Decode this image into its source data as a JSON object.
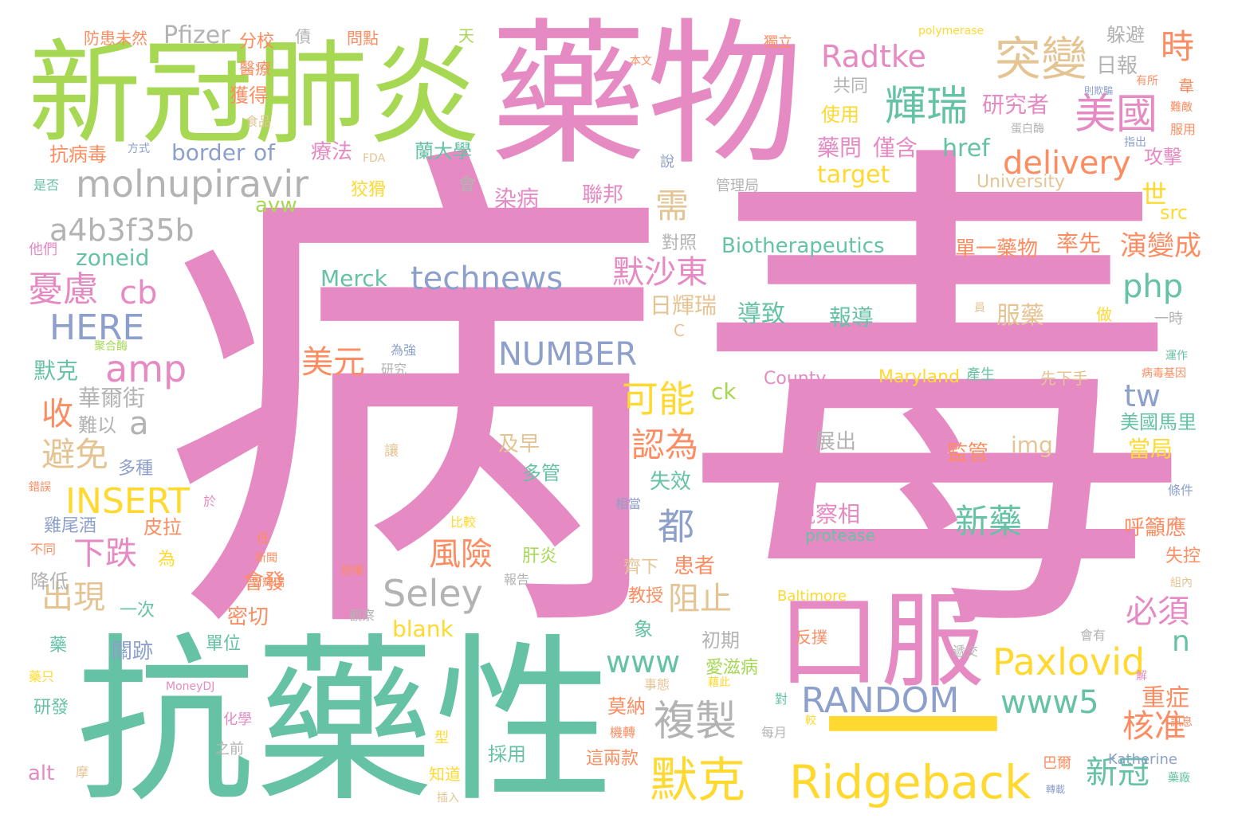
{
  "palette": {
    "pink": "#e68ac3",
    "green": "#66c2a5",
    "lime": "#a6d854",
    "yellow": "#ffd92f",
    "orange": "#fc8d62",
    "tan": "#e5c494",
    "blue": "#8da0cb",
    "gray": "#b3b3b3"
  },
  "words": [
    {
      "text": "病",
      "color": "pink"
    },
    {
      "text": "毒",
      "color": "pink"
    },
    {
      "text": "藥物",
      "color": "pink"
    },
    {
      "text": "抗藥性",
      "color": "green"
    },
    {
      "text": "新冠肺炎",
      "color": "lime"
    },
    {
      "text": "口服",
      "color": "pink"
    },
    {
      "text": "一",
      "color": "yellow"
    },
    {
      "text": "Ridgeback",
      "color": "yellow"
    },
    {
      "text": "molnupiravir",
      "color": "gray"
    },
    {
      "text": "Paxlovid",
      "color": "yellow"
    },
    {
      "text": "technews",
      "color": "blue"
    },
    {
      "text": "NUMBER",
      "color": "blue"
    },
    {
      "text": "RANDOM",
      "color": "blue"
    },
    {
      "text": "a4b3f35b",
      "color": "gray"
    },
    {
      "text": "delivery",
      "color": "orange"
    },
    {
      "text": "Radtke",
      "color": "pink"
    },
    {
      "text": "突變",
      "color": "tan"
    },
    {
      "text": "輝瑞",
      "color": "green"
    },
    {
      "text": "美國",
      "color": "pink"
    },
    {
      "text": "默克",
      "color": "yellow"
    },
    {
      "text": "複製",
      "color": "gray"
    },
    {
      "text": "Seley",
      "color": "gray"
    },
    {
      "text": "www5",
      "color": "green"
    },
    {
      "text": "www",
      "color": "green"
    },
    {
      "text": "HERE",
      "color": "blue"
    },
    {
      "text": "INSERT",
      "color": "yellow"
    },
    {
      "text": "amp",
      "color": "pink"
    },
    {
      "text": "php",
      "color": "green"
    },
    {
      "text": "可能",
      "color": "yellow"
    },
    {
      "text": "風險",
      "color": "orange"
    },
    {
      "text": "新藥",
      "color": "green"
    },
    {
      "text": "默沙東",
      "color": "pink"
    },
    {
      "text": "時",
      "color": "orange"
    },
    {
      "text": "憂慮",
      "color": "pink"
    },
    {
      "text": "cb",
      "color": "pink"
    },
    {
      "text": "避免",
      "color": "tan"
    },
    {
      "text": "出現",
      "color": "tan"
    },
    {
      "text": "美元",
      "color": "orange"
    },
    {
      "text": "認為",
      "color": "orange"
    },
    {
      "text": "都",
      "color": "blue"
    },
    {
      "text": "阻止",
      "color": "tan"
    },
    {
      "text": "必須",
      "color": "pink"
    },
    {
      "text": "核准",
      "color": "orange"
    },
    {
      "text": "新冠",
      "color": "green"
    },
    {
      "text": "下跌",
      "color": "pink"
    },
    {
      "text": "收",
      "color": "orange"
    },
    {
      "text": "需",
      "color": "tan"
    },
    {
      "text": "tw",
      "color": "blue"
    },
    {
      "text": "n",
      "color": "green"
    },
    {
      "text": "a",
      "color": "gray"
    },
    {
      "text": "Pfizer",
      "color": "gray"
    },
    {
      "text": "Merck",
      "color": "green"
    },
    {
      "text": "Biotherapeutics",
      "color": "green"
    },
    {
      "text": "target",
      "color": "yellow"
    },
    {
      "text": "href",
      "color": "green"
    },
    {
      "text": "border",
      "color": "blue"
    },
    {
      "text": "of",
      "color": "blue"
    },
    {
      "text": "zoneid",
      "color": "green"
    },
    {
      "text": "avw",
      "color": "lime"
    },
    {
      "text": "src",
      "color": "yellow"
    },
    {
      "text": "img",
      "color": "tan"
    },
    {
      "text": "ck",
      "color": "lime"
    },
    {
      "text": "blank",
      "color": "yellow"
    },
    {
      "text": "alt",
      "color": "pink"
    },
    {
      "text": "University",
      "color": "tan"
    },
    {
      "text": "County",
      "color": "pink"
    },
    {
      "text": "Maryland",
      "color": "yellow"
    },
    {
      "text": "protease",
      "color": "green"
    },
    {
      "text": "Baltimore",
      "color": "yellow"
    },
    {
      "text": "Katherine",
      "color": "blue"
    },
    {
      "text": "polymerase",
      "color": "yellow"
    },
    {
      "text": "MoneyDJ",
      "color": "pink"
    },
    {
      "text": "FDA",
      "color": "tan"
    },
    {
      "text": "C",
      "color": "tan"
    },
    {
      "text": "研究者",
      "color": "pink"
    },
    {
      "text": "藥問",
      "color": "pink"
    },
    {
      "text": "僅含",
      "color": "pink"
    },
    {
      "text": "日報",
      "color": "gray"
    },
    {
      "text": "世",
      "color": "yellow"
    },
    {
      "text": "演變成",
      "color": "orange"
    },
    {
      "text": "攻擊",
      "color": "pink"
    },
    {
      "text": "單一藥物",
      "color": "orange"
    },
    {
      "text": "率先",
      "color": "orange"
    },
    {
      "text": "服藥",
      "color": "tan"
    },
    {
      "text": "導致",
      "color": "green"
    },
    {
      "text": "報導",
      "color": "green"
    },
    {
      "text": "日輝瑞",
      "color": "tan"
    },
    {
      "text": "對照",
      "color": "gray"
    },
    {
      "text": "觀察相",
      "color": "pink"
    },
    {
      "text": "監管",
      "color": "orange"
    },
    {
      "text": "當局",
      "color": "yellow"
    },
    {
      "text": "美國馬里",
      "color": "green"
    },
    {
      "text": "呼籲應",
      "color": "orange"
    },
    {
      "text": "失控",
      "color": "orange"
    },
    {
      "text": "重症",
      "color": "orange"
    },
    {
      "text": "躲避",
      "color": "gray"
    },
    {
      "text": "共同",
      "color": "gray"
    },
    {
      "text": "使用",
      "color": "yellow"
    },
    {
      "text": "獨立",
      "color": "orange"
    },
    {
      "text": "本文",
      "color": "orange"
    },
    {
      "text": "有所",
      "color": "orange"
    },
    {
      "text": "天",
      "color": "lime"
    },
    {
      "text": "蘭大學",
      "color": "green"
    },
    {
      "text": "療法",
      "color": "pink"
    },
    {
      "text": "狡猾",
      "color": "yellow"
    },
    {
      "text": "染病",
      "color": "pink"
    },
    {
      "text": "聯邦",
      "color": "pink"
    },
    {
      "text": "管理局",
      "color": "gray"
    },
    {
      "text": "說",
      "color": "blue"
    },
    {
      "text": "會",
      "color": "gray"
    },
    {
      "text": "防患未然",
      "color": "orange"
    },
    {
      "text": "分校",
      "color": "orange"
    },
    {
      "text": "醫療",
      "color": "orange"
    },
    {
      "text": "獲得",
      "color": "orange"
    },
    {
      "text": "食品",
      "color": "tan"
    },
    {
      "text": "抗病毒",
      "color": "orange"
    },
    {
      "text": "方式",
      "color": "blue"
    },
    {
      "text": "是否",
      "color": "green"
    },
    {
      "text": "他們",
      "color": "pink"
    },
    {
      "text": "債",
      "color": "gray"
    },
    {
      "text": "問點",
      "color": "orange"
    },
    {
      "text": "默克",
      "color": "green"
    },
    {
      "text": "華爾街",
      "color": "gray"
    },
    {
      "text": "難以",
      "color": "gray"
    },
    {
      "text": "多種",
      "color": "blue"
    },
    {
      "text": "雞尾酒",
      "color": "blue"
    },
    {
      "text": "皮拉",
      "color": "orange"
    },
    {
      "text": "為",
      "color": "yellow"
    },
    {
      "text": "降低",
      "color": "gray"
    },
    {
      "text": "一次",
      "color": "green"
    },
    {
      "text": "會發",
      "color": "orange"
    },
    {
      "text": "密切",
      "color": "orange"
    },
    {
      "text": "關跡",
      "color": "blue"
    },
    {
      "text": "單位",
      "color": "green"
    },
    {
      "text": "藥",
      "color": "green"
    },
    {
      "text": "研發",
      "color": "green"
    },
    {
      "text": "化學",
      "color": "pink"
    },
    {
      "text": "之前",
      "color": "gray"
    },
    {
      "text": "及早",
      "color": "tan"
    },
    {
      "text": "多管",
      "color": "green"
    },
    {
      "text": "日",
      "color": "pink"
    },
    {
      "text": "讓",
      "color": "tan"
    },
    {
      "text": "比較",
      "color": "yellow"
    },
    {
      "text": "肝炎",
      "color": "lime"
    },
    {
      "text": "低",
      "color": "orange"
    },
    {
      "text": "新聞",
      "color": "orange"
    },
    {
      "text": "授權",
      "color": "orange"
    },
    {
      "text": "報告",
      "color": "gray"
    },
    {
      "text": "觀察",
      "color": "gray"
    },
    {
      "text": "對輝瑞",
      "color": "orange"
    },
    {
      "text": "不同",
      "color": "orange"
    },
    {
      "text": "錯誤",
      "color": "orange"
    },
    {
      "text": "於",
      "color": "pink"
    },
    {
      "text": "為強",
      "color": "blue"
    },
    {
      "text": "研究",
      "color": "gray"
    },
    {
      "text": "齊下",
      "color": "tan"
    },
    {
      "text": "患者",
      "color": "orange"
    },
    {
      "text": "失效",
      "color": "green"
    },
    {
      "text": "初期",
      "color": "gray"
    },
    {
      "text": "愛滋病",
      "color": "lime"
    },
    {
      "text": "教授",
      "color": "orange"
    },
    {
      "text": "象",
      "color": "green"
    },
    {
      "text": "事態",
      "color": "tan"
    },
    {
      "text": "藉此",
      "color": "yellow"
    },
    {
      "text": "莫納",
      "color": "orange"
    },
    {
      "text": "機轉",
      "color": "orange"
    },
    {
      "text": "這兩款",
      "color": "orange"
    },
    {
      "text": "採用",
      "color": "green"
    },
    {
      "text": "型",
      "color": "yellow"
    },
    {
      "text": "知道",
      "color": "yellow"
    },
    {
      "text": "插入",
      "color": "tan"
    },
    {
      "text": "摩",
      "color": "tan"
    },
    {
      "text": "藥只",
      "color": "yellow"
    },
    {
      "text": "每月",
      "color": "gray"
    },
    {
      "text": "對",
      "color": "green"
    },
    {
      "text": "較",
      "color": "yellow"
    },
    {
      "text": "展出",
      "color": "gray"
    },
    {
      "text": "反撲",
      "color": "orange"
    },
    {
      "text": "遞交",
      "color": "gray"
    },
    {
      "text": "會有",
      "color": "gray"
    },
    {
      "text": "巴爾",
      "color": "orange"
    },
    {
      "text": "轉載",
      "color": "blue"
    },
    {
      "text": "藥廠",
      "color": "green"
    },
    {
      "text": "訊息",
      "color": "orange"
    },
    {
      "text": "條件",
      "color": "blue"
    },
    {
      "text": "組內",
      "color": "tan"
    },
    {
      "text": "產生",
      "color": "green"
    },
    {
      "text": "先下手",
      "color": "tan"
    },
    {
      "text": "病毒基因",
      "color": "orange"
    },
    {
      "text": "運作",
      "color": "green"
    },
    {
      "text": "一時",
      "color": "gray"
    },
    {
      "text": "做",
      "color": "yellow"
    },
    {
      "text": "員",
      "color": "tan"
    },
    {
      "text": "聚合酶",
      "color": "lime"
    },
    {
      "text": "蛋白酶",
      "color": "gray"
    },
    {
      "text": "指出",
      "color": "blue"
    },
    {
      "text": "服用",
      "color": "orange"
    },
    {
      "text": "難敵",
      "color": "orange"
    },
    {
      "text": "韋",
      "color": "orange"
    },
    {
      "text": "則欺騙",
      "color": "blue"
    },
    {
      "text": "解",
      "color": "pink"
    },
    {
      "text": "相當",
      "color": "blue"
    }
  ]
}
